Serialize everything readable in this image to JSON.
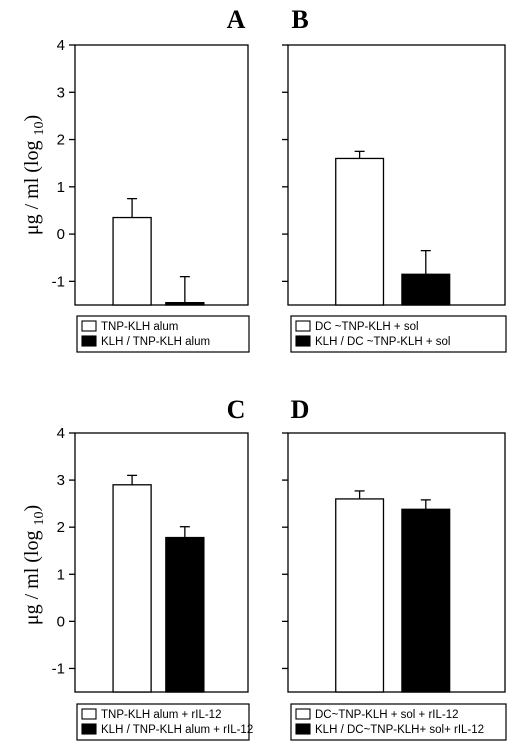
{
  "y_axis_label": {
    "main": "μg / ml (log ",
    "sub": "10",
    "close": ")"
  },
  "chart_data": [
    {
      "type": "bar",
      "panel": "A",
      "ylim": [
        -1.5,
        4
      ],
      "yticks": [
        4,
        3,
        2,
        1,
        0,
        -1
      ],
      "ytick_labels": [
        "4",
        "3",
        "2",
        "1",
        "0",
        "-1"
      ],
      "series": [
        {
          "name": "TNP-KLH alum",
          "fill": "#ffffff",
          "value": 0.35,
          "error": 0.4
        },
        {
          "name": "KLH / TNP-KLH alum",
          "fill": "#000000",
          "value": -1.45,
          "error": 0.55
        }
      ]
    },
    {
      "type": "bar",
      "panel": "B",
      "ylim": [
        -1.5,
        4
      ],
      "yticks": [
        4,
        3,
        2,
        1,
        0,
        -1
      ],
      "ytick_labels": [],
      "series": [
        {
          "name": "DC ~TNP-KLH + sol",
          "fill": "#ffffff",
          "value": 1.6,
          "error": 0.15
        },
        {
          "name": "KLH / DC ~TNP-KLH + sol",
          "fill": "#000000",
          "value": -0.85,
          "error": 0.5
        }
      ]
    },
    {
      "type": "bar",
      "panel": "C",
      "ylim": [
        -1.5,
        4
      ],
      "yticks": [
        4,
        3,
        2,
        1,
        0,
        -1
      ],
      "ytick_labels": [
        "4",
        "3",
        "2",
        "1",
        "0",
        "-1"
      ],
      "series": [
        {
          "name": "TNP-KLH alum + rIL-12",
          "fill": "#ffffff",
          "value": 2.9,
          "error": 0.2
        },
        {
          "name": "KLH / TNP-KLH alum + rIL-12",
          "fill": "#000000",
          "value": 1.78,
          "error": 0.23
        }
      ]
    },
    {
      "type": "bar",
      "panel": "D",
      "ylim": [
        -1.5,
        4
      ],
      "yticks": [
        4,
        3,
        2,
        1,
        0,
        -1
      ],
      "ytick_labels": [],
      "series": [
        {
          "name": "DC~TNP-KLH + sol + rIL-12",
          "fill": "#ffffff",
          "value": 2.6,
          "error": 0.17
        },
        {
          "name": "KLH / DC~TNP-KLH+ sol+ rIL-12",
          "fill": "#000000",
          "value": 2.38,
          "error": 0.2
        }
      ]
    }
  ]
}
